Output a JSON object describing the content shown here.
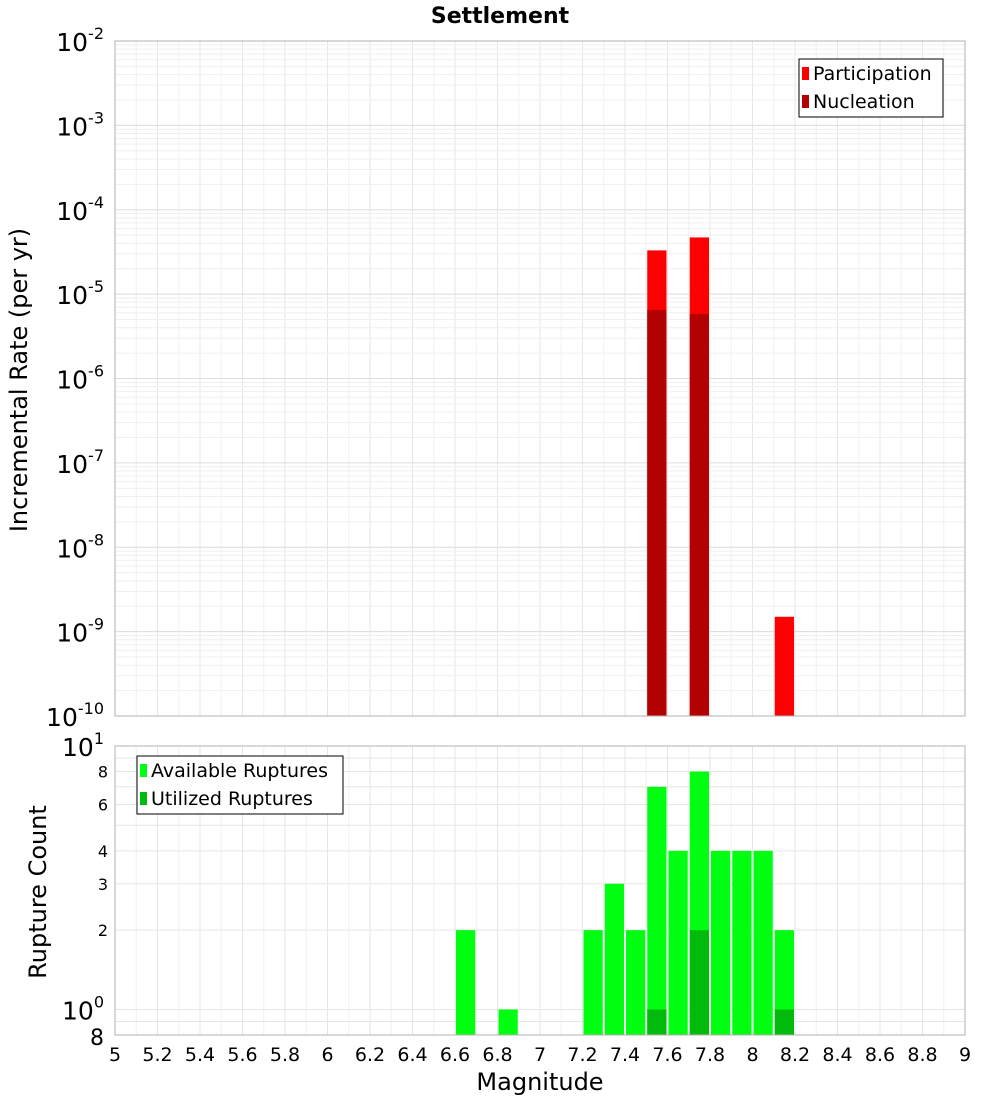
{
  "chart_data": [
    {
      "type": "bar",
      "title": "Settlement",
      "xlabel": "Magnitude",
      "ylabel": "Incremental Rate (per yr)",
      "y_scale": "log",
      "ylim": [
        1e-10,
        0.01
      ],
      "xlim": [
        5,
        9
      ],
      "bin_width": 0.1,
      "y_tick_labels": [
        {
          "base": "10",
          "exp": "-10"
        },
        {
          "base": "10",
          "exp": "-9"
        },
        {
          "base": "10",
          "exp": "-8"
        },
        {
          "base": "10",
          "exp": "-7"
        },
        {
          "base": "10",
          "exp": "-6"
        },
        {
          "base": "10",
          "exp": "-5"
        },
        {
          "base": "10",
          "exp": "-4"
        },
        {
          "base": "10",
          "exp": "-3"
        },
        {
          "base": "10",
          "exp": "-2"
        }
      ],
      "legend": {
        "position": "top-right"
      },
      "series": [
        {
          "name": "Participation",
          "color": "#ff0000",
          "x": [
            7.55,
            7.75,
            8.15
          ],
          "values": [
            3.3e-05,
            4.7e-05,
            1.5e-09
          ]
        },
        {
          "name": "Nucleation",
          "color": "#b30000",
          "x": [
            7.55,
            7.75
          ],
          "values": [
            6.5e-06,
            5.8e-06
          ]
        }
      ],
      "grid": true
    },
    {
      "type": "bar",
      "xlabel": "Magnitude",
      "ylabel": "Rupture Count",
      "y_scale": "log",
      "ylim": [
        0.8,
        10
      ],
      "xlim": [
        5,
        9
      ],
      "bin_width": 0.1,
      "x_ticks": [
        "5",
        "5.2",
        "5.4",
        "5.6",
        "5.8",
        "6",
        "6.2",
        "6.4",
        "6.6",
        "6.8",
        "7",
        "7.2",
        "7.4",
        "7.6",
        "7.8",
        "8",
        "8.2",
        "8.4",
        "8.6",
        "8.8",
        "9"
      ],
      "y_ticks": [
        "2",
        "3",
        "4",
        "6",
        "8"
      ],
      "y_tick_labels_big": [
        {
          "base": "10",
          "exp": "0",
          "value": 1
        },
        {
          "base": "10",
          "exp": "1",
          "value": 10
        }
      ],
      "y_bottom_label": "8",
      "legend": {
        "position": "top-left"
      },
      "series": [
        {
          "name": "Available Ruptures",
          "color": "#00ff11",
          "x": [
            6.65,
            6.85,
            7.25,
            7.35,
            7.45,
            7.55,
            7.65,
            7.75,
            7.85,
            7.95,
            8.05,
            8.15
          ],
          "values": [
            2,
            1,
            2,
            3,
            2,
            7,
            4,
            8,
            4,
            4,
            4,
            2
          ]
        },
        {
          "name": "Utilized Ruptures",
          "color": "#00bb0c",
          "x": [
            7.55,
            7.75,
            8.15
          ],
          "values": [
            1,
            2,
            1
          ]
        }
      ],
      "grid": true
    }
  ]
}
